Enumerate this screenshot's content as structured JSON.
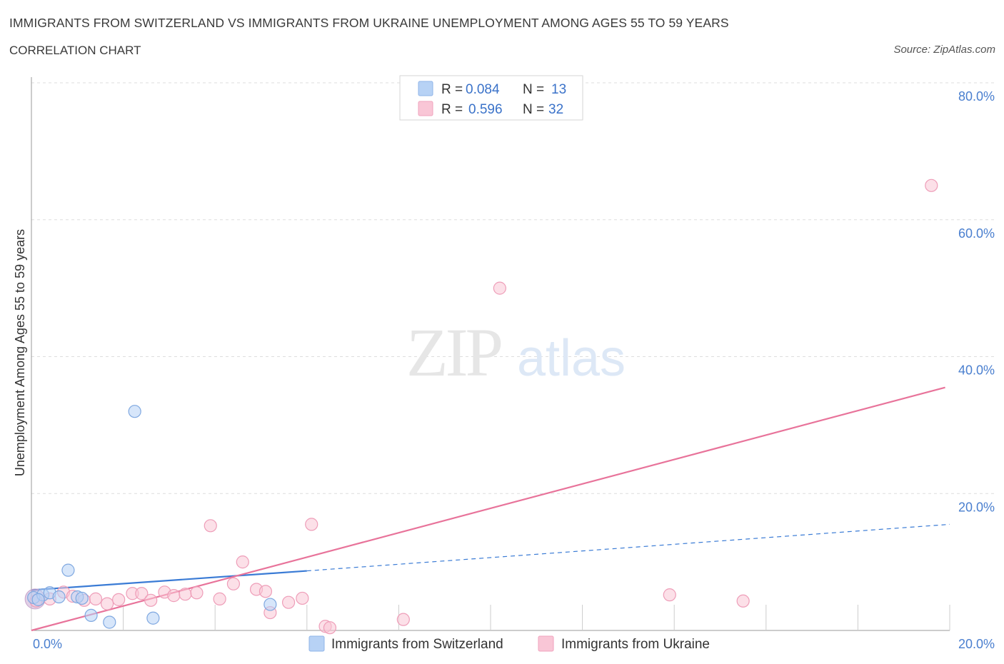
{
  "header": {
    "title": "IMMIGRANTS FROM SWITZERLAND VS IMMIGRANTS FROM UKRAINE UNEMPLOYMENT AMONG AGES 55 TO 59 YEARS",
    "subtitle": "CORRELATION CHART",
    "source": "Source: ZipAtlas.com"
  },
  "watermark": {
    "zip": "ZIP",
    "atlas": "atlas"
  },
  "colors": {
    "switzerland": "#a9c8f0",
    "switzerland_line": "#3a7bd5",
    "ukraine": "#f7b6ca",
    "ukraine_line": "#e8739a",
    "grid": "#dddddd",
    "tick_text": "#4a7fcf"
  },
  "legend": {
    "rows": [
      {
        "r_label": "R =",
        "r_value": "0.084",
        "n_label": "N =",
        "n_value": "13"
      },
      {
        "r_label": "R =",
        "r_value": "0.596",
        "n_label": "N =",
        "n_value": "32"
      }
    ]
  },
  "chart_data": {
    "type": "scatter",
    "title": "IMMIGRANTS FROM SWITZERLAND VS IMMIGRANTS FROM UKRAINE UNEMPLOYMENT AMONG AGES 55 TO 59 YEARS",
    "xlabel": "",
    "ylabel": "Unemployment Among Ages 55 to 59 years",
    "xlim": [
      0,
      20
    ],
    "ylim": [
      0,
      80
    ],
    "x_tick_labels": [
      "0.0%",
      "20.0%"
    ],
    "y_tick_labels": [
      "20.0%",
      "40.0%",
      "60.0%",
      "80.0%"
    ],
    "y_ticks": [
      20,
      40,
      60,
      80
    ],
    "series": [
      {
        "name": "Immigrants from Switzerland",
        "r": 0.084,
        "n": 13,
        "points": [
          [
            0.05,
            4.8
          ],
          [
            0.25,
            5.2
          ],
          [
            0.4,
            5.5
          ],
          [
            0.6,
            4.9
          ],
          [
            0.8,
            8.8
          ],
          [
            1.0,
            4.9
          ],
          [
            1.3,
            2.2
          ],
          [
            1.7,
            1.2
          ],
          [
            2.25,
            32.0
          ],
          [
            2.65,
            1.8
          ],
          [
            5.2,
            3.8
          ],
          [
            0.15,
            4.5
          ],
          [
            1.1,
            4.7
          ]
        ],
        "trend": {
          "x0": 0,
          "y0": 5.9,
          "x1": 6.0,
          "y1": 8.7,
          "dash_x1": 20,
          "dash_y1": 15.5
        }
      },
      {
        "name": "Immigrants from Ukraine",
        "r": 0.596,
        "n": 32,
        "points": [
          [
            0.1,
            4.3
          ],
          [
            0.4,
            4.6
          ],
          [
            0.7,
            5.6
          ],
          [
            0.9,
            5.0
          ],
          [
            1.15,
            4.4
          ],
          [
            1.4,
            4.6
          ],
          [
            1.65,
            3.9
          ],
          [
            1.9,
            4.5
          ],
          [
            2.2,
            5.4
          ],
          [
            2.4,
            5.4
          ],
          [
            2.6,
            4.4
          ],
          [
            2.9,
            5.6
          ],
          [
            3.1,
            5.1
          ],
          [
            3.35,
            5.3
          ],
          [
            3.6,
            5.5
          ],
          [
            3.9,
            15.3
          ],
          [
            4.1,
            4.6
          ],
          [
            4.4,
            6.8
          ],
          [
            4.6,
            10.0
          ],
          [
            4.9,
            6.0
          ],
          [
            5.1,
            5.7
          ],
          [
            5.2,
            2.6
          ],
          [
            5.6,
            4.1
          ],
          [
            5.9,
            4.7
          ],
          [
            6.1,
            15.5
          ],
          [
            6.4,
            0.6
          ],
          [
            6.5,
            0.4
          ],
          [
            8.1,
            1.6
          ],
          [
            10.2,
            50.0
          ],
          [
            13.9,
            5.2
          ],
          [
            15.5,
            4.3
          ],
          [
            19.6,
            65.0
          ]
        ],
        "trend": {
          "x0": 0,
          "y0": 0.0,
          "x1": 19.9,
          "y1": 35.5
        }
      }
    ]
  }
}
